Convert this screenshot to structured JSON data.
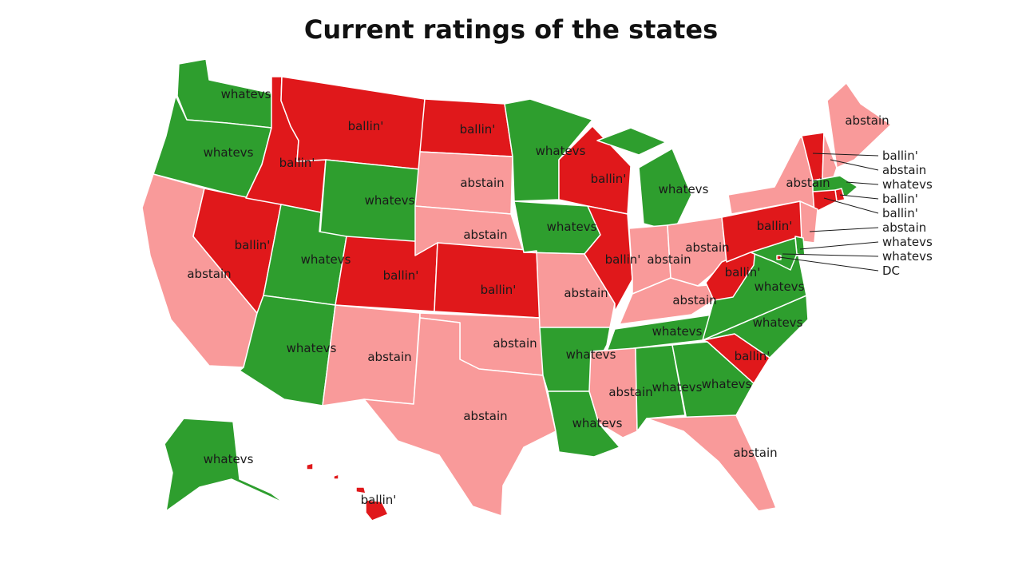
{
  "title": "Current ratings of the states",
  "colors": {
    "ballin'": "#e0181b",
    "whatevs": "#2e9e2e",
    "abstain": "#f99a9a"
  },
  "states": {
    "WA": "whatevs",
    "OR": "whatevs",
    "CA": "abstain",
    "NV": "ballin'",
    "ID": "ballin'",
    "MT": "ballin'",
    "WY": "whatevs",
    "UT": "whatevs",
    "AZ": "whatevs",
    "CO": "ballin'",
    "NM": "abstain",
    "ND": "ballin'",
    "SD": "abstain",
    "NE": "abstain",
    "KS": "ballin'",
    "OK": "abstain",
    "TX": "abstain",
    "MN": "whatevs",
    "IA": "whatevs",
    "MO": "abstain",
    "AR": "whatevs",
    "LA": "whatevs",
    "WI": "ballin'",
    "IL": "ballin'",
    "MI": "whatevs",
    "IN": "abstain",
    "OH": "abstain",
    "KY": "abstain",
    "TN": "whatevs",
    "MS": "abstain",
    "AL": "whatevs",
    "GA": "whatevs",
    "FL": "abstain",
    "SC": "ballin'",
    "NC": "whatevs",
    "VA": "whatevs",
    "WV": "ballin'",
    "PA": "ballin'",
    "NY": "abstain",
    "ME": "abstain",
    "VT": "ballin'",
    "NH": "abstain",
    "MA": "whatevs",
    "RI": "ballin'",
    "CT": "ballin'",
    "NJ": "abstain",
    "DE": "whatevs",
    "MD": "whatevs",
    "DC": "ballin'",
    "AK": "whatevs",
    "HI": "ballin'"
  },
  "callouts": [
    "ballin'",
    "abstain",
    "whatevs",
    "ballin'",
    "ballin'",
    "abstain",
    "whatevs",
    "whatevs",
    "DC"
  ]
}
